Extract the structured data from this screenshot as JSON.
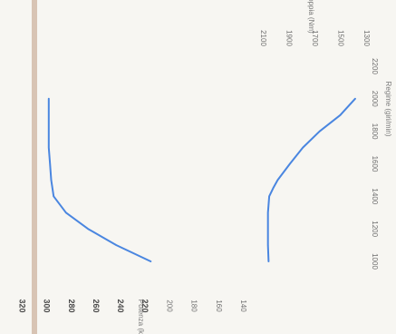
{
  "chart_data": {
    "type": "line",
    "orientation": "rotated-90-clockwise",
    "x_axis": {
      "label": "Regime (giri/min)",
      "ticks": [
        1000,
        1200,
        1400,
        1600,
        1800,
        2000,
        2200
      ],
      "range": [
        1000,
        2200
      ]
    },
    "power_axis": {
      "label": "Potenza (kW)",
      "ticks": [
        320,
        300,
        280,
        260,
        240,
        220,
        200,
        180,
        160,
        140
      ],
      "bold_ticks": [
        320,
        300,
        280,
        260,
        240,
        220
      ],
      "range": [
        140,
        320
      ]
    },
    "torque_axis": {
      "label": "Coppia (Nm)",
      "ticks": [
        2100,
        1900,
        1700,
        1500,
        1300
      ],
      "range": [
        1300,
        2100
      ]
    },
    "series": [
      {
        "key": "power",
        "axis": "power",
        "color": "#4a86e0",
        "x": [
          1000,
          1100,
          1200,
          1300,
          1400,
          1500,
          1600,
          1700,
          1800,
          1900,
          2000
        ],
        "y": [
          215,
          243,
          266,
          284,
          294,
          296,
          297,
          298,
          298,
          298,
          298
        ]
      },
      {
        "key": "torque",
        "axis": "torque",
        "color": "#4a86e0",
        "x": [
          1000,
          1100,
          1200,
          1300,
          1400,
          1450,
          1500,
          1600,
          1700,
          1800,
          1900,
          2000
        ],
        "y": [
          2055,
          2060,
          2060,
          2060,
          2050,
          2020,
          1985,
          1890,
          1790,
          1660,
          1500,
          1385
        ]
      }
    ],
    "colors": {
      "background": "#f7f6f2",
      "reference_line": "#d8c4b4",
      "text": "#6f6f6f",
      "series": "#4a86e0"
    }
  }
}
